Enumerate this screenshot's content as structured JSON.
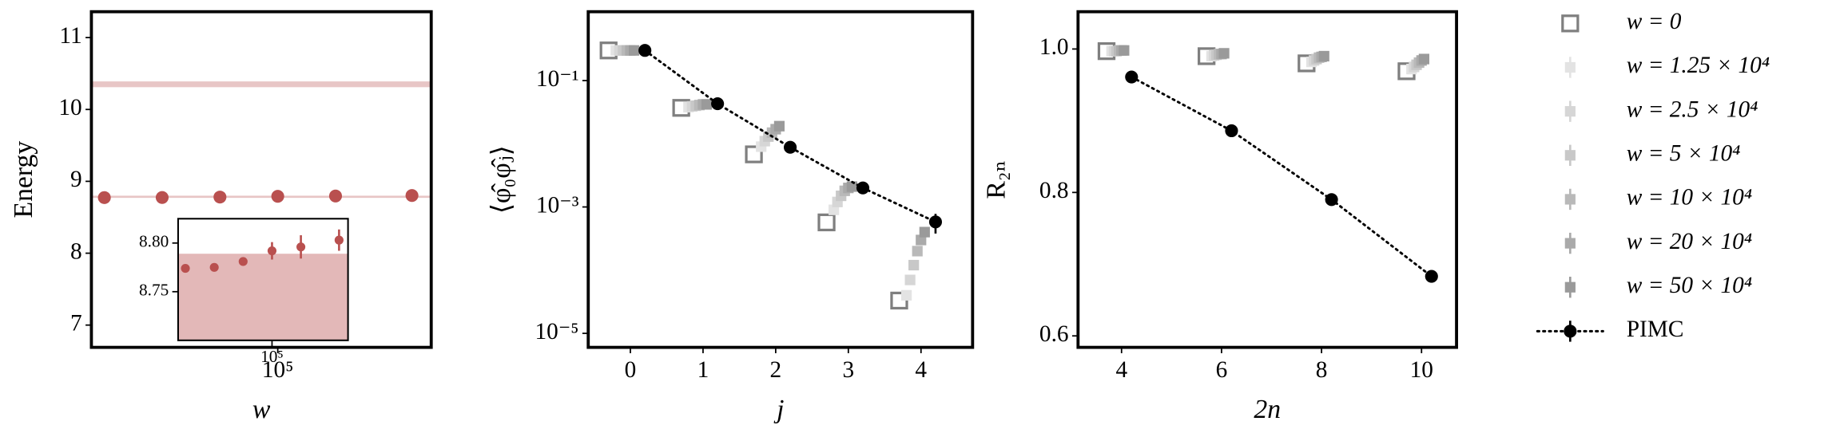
{
  "chart_data": [
    {
      "type": "scatter",
      "ylabel": "Energy",
      "xlabel": "w",
      "xscale": "log",
      "xlim": [
        10700,
        630000
      ],
      "ylim": [
        6.69,
        11.36
      ],
      "xticks": [
        {
          "value": 100000,
          "label": "10⁵"
        }
      ],
      "yticks": [
        7,
        8,
        9,
        10,
        11
      ],
      "bands": [
        {
          "range": [
            10.31,
            10.39
          ],
          "color": "#e8c6c6"
        },
        {
          "range": [
            8.77,
            8.8
          ],
          "color": "#e8c6c6"
        }
      ],
      "series": [
        {
          "color": "#b9504f",
          "marker": "circle",
          "x": [
            12500,
            25000,
            50000,
            100000,
            200000,
            500000
          ],
          "values": [
            8.774,
            8.775,
            8.781,
            8.792,
            8.796,
            8.803
          ]
        }
      ],
      "inset": {
        "xscale": "log",
        "xlim": [
          10500,
          620000
        ],
        "ylim": [
          8.7,
          8.825
        ],
        "xticks": [
          {
            "value": 100000,
            "label": "10⁵"
          }
        ],
        "yticks": [
          8.75,
          {
            "value": 8.8,
            "label": "8.80"
          }
        ],
        "bands": [
          {
            "range": [
              8.7,
              8.789
            ],
            "color": "#e3b8b8"
          }
        ],
        "series": [
          {
            "color": "#b9504f",
            "marker": "circle",
            "x": [
              12500,
              25000,
              50000,
              100000,
              200000,
              500000
            ],
            "values": [
              8.774,
              8.775,
              8.781,
              8.792,
              8.796,
              8.803
            ],
            "errors": [
              0.002,
              0.002,
              0.003,
              0.009,
              0.012,
              0.011
            ]
          }
        ]
      }
    },
    {
      "type": "scatter",
      "ylabel": "⟨φ̂₀φ̂ⱼ⟩",
      "xlabel": "j",
      "yscale": "log",
      "xlim": [
        -0.58,
        4.71
      ],
      "ylim": [
        6e-06,
        1.23
      ],
      "xticks": [
        0,
        1,
        2,
        3,
        4
      ],
      "yticks": [
        {
          "value": 0.1,
          "label": "10⁻¹"
        },
        {
          "value": 0.001,
          "label": "10⁻³"
        },
        {
          "value": 1e-05,
          "label": "10⁻⁵"
        }
      ],
      "series": [
        {
          "name": "w = 0",
          "color": "#7f7f7f",
          "marker": "square-open",
          "x": [
            -0.3,
            0.7,
            1.7,
            2.7,
            3.7
          ],
          "values": [
            0.3,
            0.037,
            0.0068,
            0.00057,
            3.3e-05
          ]
        },
        {
          "name": "w = 1.25 × 10⁴",
          "color": "#e3e3e3",
          "marker": "square",
          "x": [
            -0.2,
            0.8,
            1.8,
            2.8,
            3.8
          ],
          "values": [
            0.3,
            0.038,
            0.009,
            0.0009,
            4e-05
          ]
        },
        {
          "name": "w = 2.5 × 10⁴",
          "color": "#d6d6d6",
          "marker": "square",
          "x": [
            -0.15,
            0.85,
            1.85,
            2.85,
            3.85
          ],
          "values": [
            0.3,
            0.039,
            0.011,
            0.0012,
            7e-05
          ]
        },
        {
          "name": "w = 5 × 10⁴",
          "color": "#c8c8c8",
          "marker": "square",
          "x": [
            -0.1,
            0.9,
            1.9,
            2.9,
            3.9
          ],
          "values": [
            0.3,
            0.04,
            0.013,
            0.0015,
            0.00012
          ]
        },
        {
          "name": "w = 10 × 10⁴",
          "color": "#b9b9b9",
          "marker": "square",
          "x": [
            -0.05,
            0.95,
            1.95,
            2.95,
            3.95
          ],
          "values": [
            0.3,
            0.041,
            0.015,
            0.0018,
            0.0002
          ]
        },
        {
          "name": "w = 20 × 10⁴",
          "color": "#aaaaaa",
          "marker": "square",
          "x": [
            0,
            1,
            2,
            3,
            4
          ],
          "values": [
            0.3,
            0.042,
            0.017,
            0.002,
            0.0003
          ]
        },
        {
          "name": "w = 50 × 10⁴",
          "color": "#9a9a9a",
          "marker": "square",
          "x": [
            0.05,
            1.05,
            2.05,
            3.05,
            4.05
          ],
          "values": [
            0.3,
            0.042,
            0.019,
            0.0021,
            0.0004
          ]
        },
        {
          "name": "PIMC",
          "color": "#000000",
          "marker": "circle",
          "line": "dotted",
          "x": [
            0.2,
            1.2,
            2.2,
            3.2,
            4.2
          ],
          "values": [
            0.3,
            0.043,
            0.0088,
            0.002,
            0.00058
          ],
          "errors": [
            0.003,
            0.0004,
            0.0001,
            3e-05,
            0.0002
          ]
        }
      ]
    },
    {
      "type": "scatter",
      "ylabel": "R₂ₙ",
      "xlabel": "2n",
      "xlim": [
        3.13,
        10.7
      ],
      "ylim": [
        0.584,
        1.052
      ],
      "xticks": [
        4,
        6,
        8,
        10
      ],
      "yticks": [
        0.6,
        0.8,
        {
          "value": 1,
          "label": "1.0"
        }
      ],
      "series": [
        {
          "color": "#7f7f7f",
          "marker": "square-open",
          "x": [
            3.7,
            5.7,
            7.7,
            9.7
          ],
          "values": [
            0.997,
            0.99,
            0.98,
            0.969
          ]
        },
        {
          "color": "#e3e3e3",
          "marker": "square",
          "x": [
            3.8,
            5.8,
            7.8,
            9.8
          ],
          "values": [
            0.997,
            0.99,
            0.982,
            0.972
          ]
        },
        {
          "color": "#d6d6d6",
          "marker": "square",
          "x": [
            3.85,
            5.85,
            7.85,
            9.85
          ],
          "values": [
            0.997,
            0.991,
            0.984,
            0.975
          ]
        },
        {
          "color": "#c8c8c8",
          "marker": "square",
          "x": [
            3.9,
            5.9,
            7.9,
            9.9
          ],
          "values": [
            0.997,
            0.992,
            0.986,
            0.978
          ]
        },
        {
          "color": "#b9b9b9",
          "marker": "square",
          "x": [
            3.95,
            5.95,
            7.95,
            9.95
          ],
          "values": [
            0.998,
            0.993,
            0.988,
            0.981
          ]
        },
        {
          "color": "#aaaaaa",
          "marker": "square",
          "x": [
            4,
            6,
            8,
            10
          ],
          "values": [
            0.998,
            0.993,
            0.989,
            0.984
          ]
        },
        {
          "color": "#9a9a9a",
          "marker": "square",
          "x": [
            4.05,
            6.05,
            8.05,
            10.05
          ],
          "values": [
            0.998,
            0.994,
            0.99,
            0.986
          ]
        },
        {
          "color": "#000000",
          "marker": "circle",
          "line": "dotted",
          "x": [
            4.2,
            6.2,
            8.2,
            10.2
          ],
          "values": [
            0.961,
            0.886,
            0.79,
            0.683
          ]
        }
      ]
    }
  ]
}
